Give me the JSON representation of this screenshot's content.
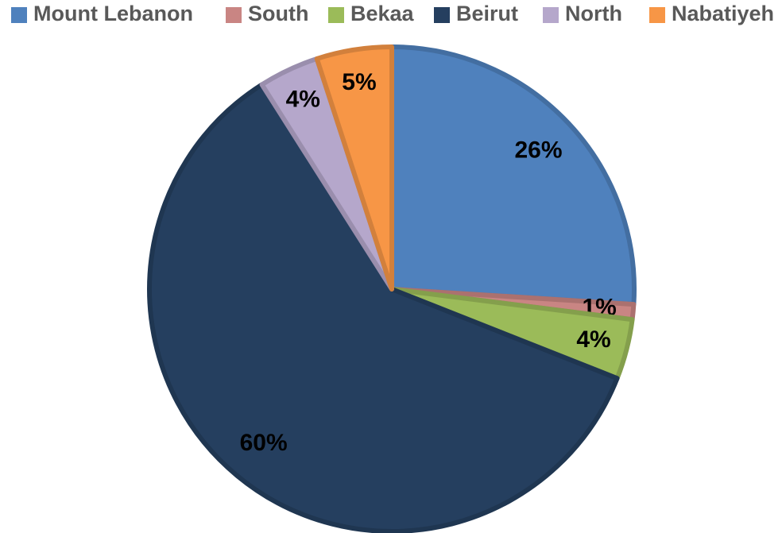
{
  "chart_data": {
    "type": "pie",
    "categories": [
      "Mount Lebanon",
      "South",
      "Bekaa",
      "Beirut",
      "North",
      "Nabatiyeh"
    ],
    "values": [
      26,
      1,
      4,
      60,
      4,
      5
    ],
    "value_labels": [
      "26%",
      "1%",
      "4%",
      "60%",
      "4%",
      "5%"
    ],
    "colors": [
      "#4f81bd",
      "#c98583",
      "#9bbb59",
      "#253f5f",
      "#b5a7cb",
      "#f79646"
    ],
    "legend": "top"
  }
}
